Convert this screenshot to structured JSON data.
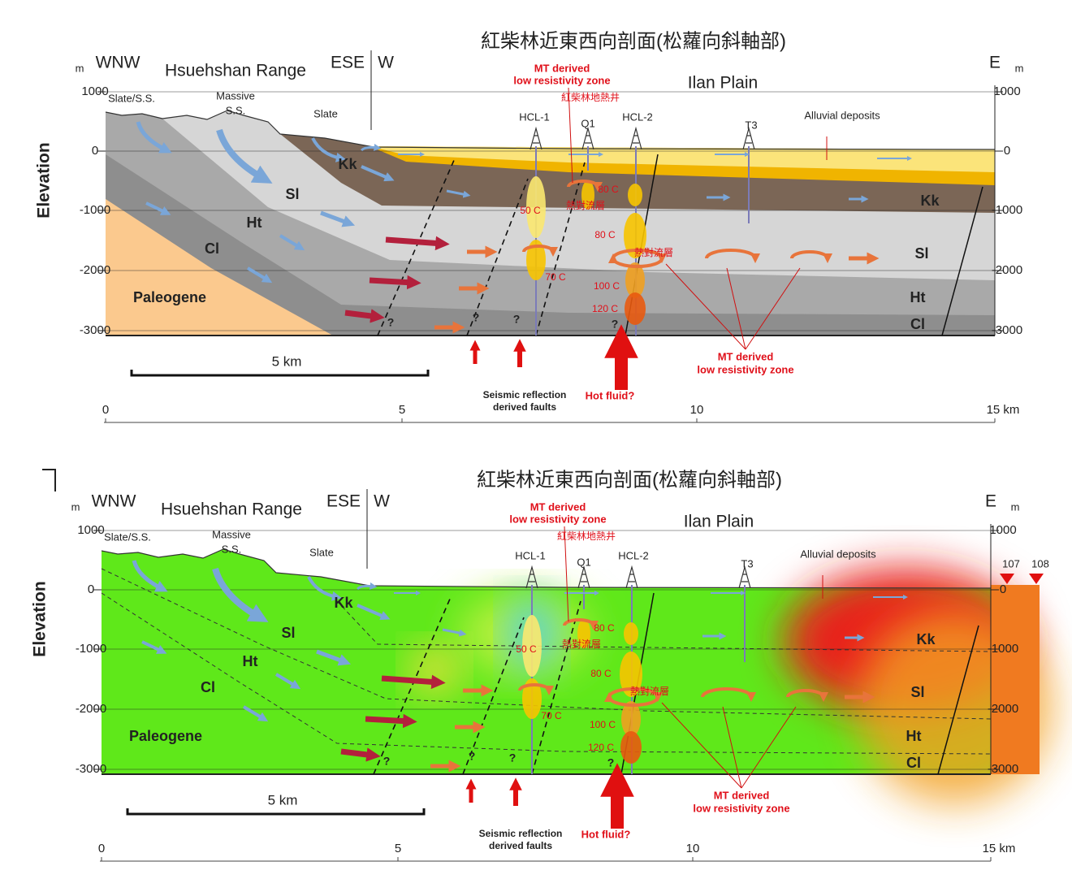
{
  "panels": [
    {
      "labels": [
        "紅柴林近東西向剖面(松蘿向斜軸部)",
        "m",
        "WNW",
        "Hsuehshan Range",
        "ESE",
        "W",
        "E",
        "m",
        "MT derived",
        "low resistivity zone",
        "Ilan Plain",
        "紅柴林地熱井",
        "Slate/S.S.",
        "Massive",
        "S.S.",
        "Slate",
        "HCL-1",
        "Q1",
        "HCL-2",
        "T3",
        "Alluvial deposits",
        "Kk",
        "Sl",
        "Ht",
        "Cl",
        "Paleogene",
        "Kk",
        "Sl",
        "Ht",
        "Cl",
        "50 C",
        "80 C",
        "熱對流層",
        "80 C",
        "熱對流層",
        "70 C",
        "100 C",
        "120 C",
        "?",
        "?",
        "?",
        "?",
        "5 km",
        "MT derived",
        "low resistivity zone",
        "Seismic reflection",
        "derived faults",
        "Hot fluid?"
      ],
      "elevation_label": "Elevation",
      "yticks": [
        "1000",
        "0",
        "-1000",
        "-2000",
        "-3000"
      ],
      "y2ticks": [
        "1000",
        "0",
        "-1000",
        "-2000",
        "-3000"
      ],
      "xticks": [
        "0",
        "5",
        "10",
        "15 km"
      ]
    },
    {
      "labels": [
        "紅柴林近東西向剖面(松蘿向斜軸部)",
        "m",
        "WNW",
        "Hsuehshan Range",
        "ESE",
        "W",
        "E",
        "m",
        "MT derived",
        "low resistivity zone",
        "Ilan Plain",
        "紅柴林地熱井",
        "Slate/S.S.",
        "Massive",
        "S.S.",
        "Slate",
        "HCL-1",
        "Q1",
        "HCL-2",
        "T3",
        "Alluvial deposits",
        "Kk",
        "Sl",
        "Ht",
        "Cl",
        "Paleogene",
        "Kk",
        "Sl",
        "Ht",
        "Cl",
        "50 C",
        "80 C",
        "熱對流層",
        "80 C",
        "熱對流層",
        "70 C",
        "100 C",
        "120 C",
        "?",
        "?",
        "?",
        "?",
        "5 km",
        "MT derived",
        "low resistivity zone",
        "Seismic reflection",
        "derived faults",
        "Hot fluid?",
        "107",
        "108"
      ],
      "elevation_label": "Elevation",
      "yticks": [
        "1000",
        "0",
        "-1000",
        "-2000",
        "-3000"
      ],
      "y2ticks": [
        "1000",
        "0",
        "-1000",
        "-2000",
        "-3000"
      ],
      "xticks": [
        "0",
        "5",
        "10",
        "15 km"
      ]
    }
  ]
}
